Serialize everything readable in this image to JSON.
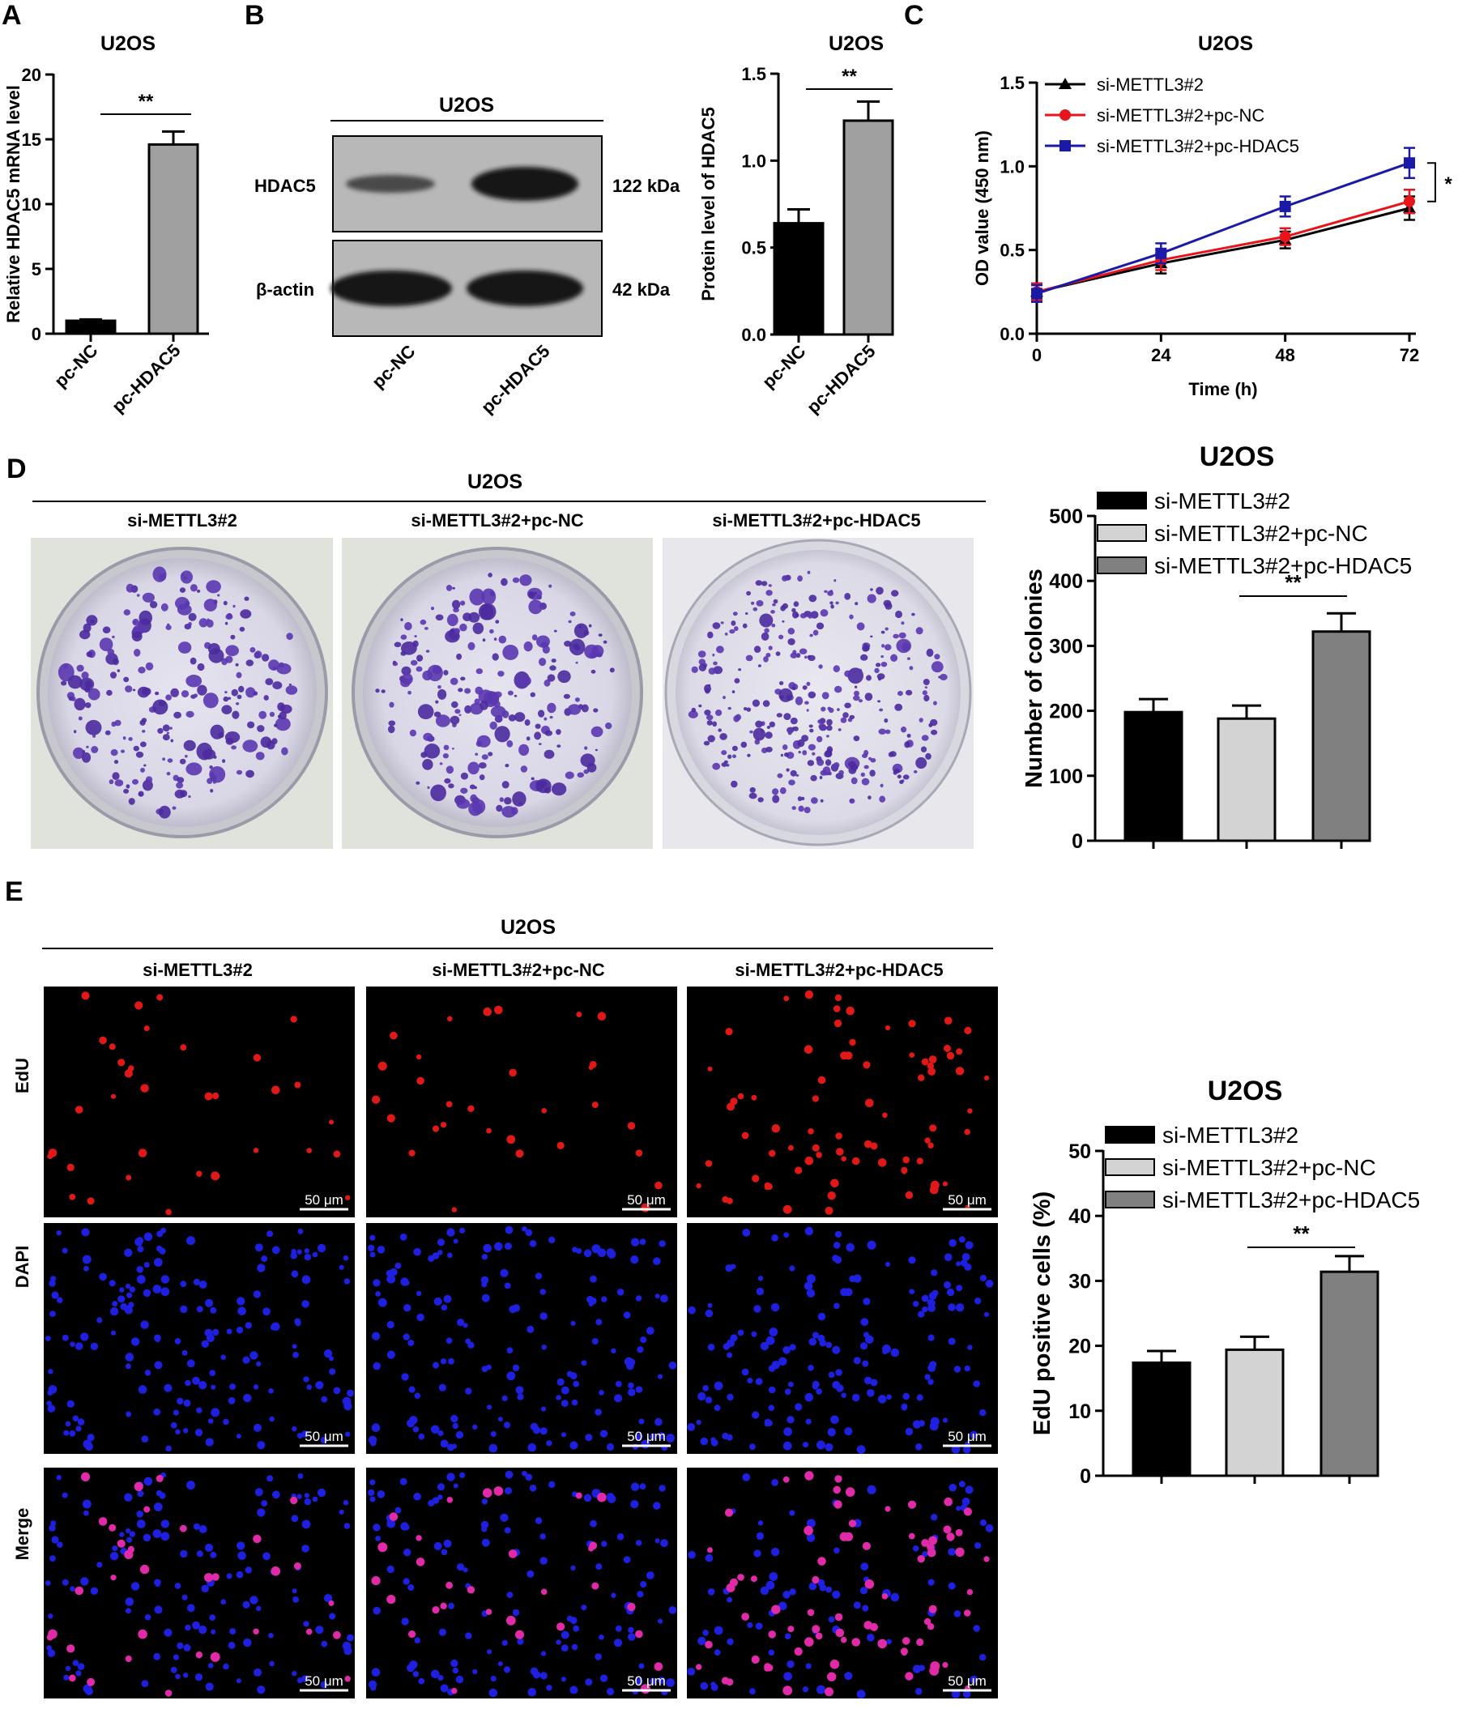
{
  "panels": {
    "A": {
      "letter": "A",
      "title": "U2OS",
      "sig": "**",
      "chart_data": {
        "type": "bar",
        "title": "U2OS",
        "ylabel": "Relative HDAC5 mRNA level",
        "ylim": [
          0,
          20
        ],
        "yticks": [
          "0",
          "5",
          "10",
          "15",
          "20"
        ],
        "categories": [
          "pc-NC",
          "pc-HDAC5"
        ],
        "values": [
          1.0,
          14.6
        ],
        "errors": [
          0.1,
          1.0
        ],
        "colors": [
          "#000000",
          "#a0a0a0"
        ]
      }
    },
    "B": {
      "letter": "B",
      "blot_title": "U2OS",
      "bands": [
        {
          "label": "HDAC5",
          "size": "122 kDa"
        },
        {
          "label": "β-actin",
          "size": "42 kDa"
        }
      ],
      "lanes": [
        "pc-NC",
        "pc-HDAC5"
      ],
      "sig": "**",
      "chart_data": {
        "type": "bar",
        "title": "U2OS",
        "ylabel": "Protein level of HDAC5",
        "ylim": [
          0,
          1.5
        ],
        "yticks": [
          "0.0",
          "0.5",
          "1.0",
          "1.5"
        ],
        "categories": [
          "pc-NC",
          "pc-HDAC5"
        ],
        "values": [
          0.64,
          1.23
        ],
        "errors": [
          0.08,
          0.11
        ],
        "colors": [
          "#000000",
          "#a0a0a0"
        ]
      }
    },
    "C": {
      "letter": "C",
      "sig": "*",
      "chart_data": {
        "type": "line",
        "title": "U2OS",
        "xlabel": "Time (h)",
        "ylabel": "OD value (450 nm)",
        "x": [
          0,
          24,
          48,
          72
        ],
        "xticks": [
          "0",
          "24",
          "48",
          "72"
        ],
        "ylim": [
          0,
          1.5
        ],
        "yticks": [
          "0.0",
          "0.5",
          "1.0",
          "1.5"
        ],
        "legend_position": "top-left",
        "series": [
          {
            "name": "si-METTL3#2",
            "values": [
              0.25,
              0.42,
              0.56,
              0.75
            ],
            "errors": [
              0.05,
              0.06,
              0.05,
              0.07
            ],
            "color": "#000000",
            "marker": "triangle"
          },
          {
            "name": "si-METTL3#2+pc-NC",
            "values": [
              0.25,
              0.44,
              0.58,
              0.79
            ],
            "errors": [
              0.05,
              0.06,
              0.05,
              0.07
            ],
            "color": "#e8141b",
            "marker": "circle"
          },
          {
            "name": "si-METTL3#2+pc-HDAC5",
            "values": [
              0.24,
              0.48,
              0.76,
              1.02
            ],
            "errors": [
              0.05,
              0.06,
              0.06,
              0.09
            ],
            "color": "#1a1aa6",
            "marker": "square"
          }
        ]
      }
    },
    "D": {
      "letter": "D",
      "header": "U2OS",
      "images": [
        "si-METTL3#2",
        "si-METTL3#2+pc-NC",
        "si-METTL3#2+pc-HDAC5"
      ],
      "sig": "**",
      "chart_data": {
        "type": "bar",
        "title": "U2OS",
        "ylabel": "Number of colonies",
        "ylim": [
          0,
          500
        ],
        "yticks": [
          "0",
          "100",
          "200",
          "300",
          "400",
          "500"
        ],
        "categories": [
          "si-METTL3#2",
          "si-METTL3#2+pc-NC",
          "si-METTL3#2+pc-HDAC5"
        ],
        "values": [
          198,
          188,
          322
        ],
        "errors": [
          20,
          20,
          28
        ],
        "colors": [
          "#000000",
          "#d3d3d3",
          "#808080"
        ],
        "legend": [
          "si-METTL3#2",
          "si-METTL3#2+pc-NC",
          "si-METTL3#2+pc-HDAC5"
        ],
        "legend_position": "top"
      }
    },
    "E": {
      "letter": "E",
      "header": "U2OS",
      "columns": [
        "si-METTL3#2",
        "si-METTL3#2+pc-NC",
        "si-METTL3#2+pc-HDAC5"
      ],
      "rows": [
        "EdU",
        "DAPI",
        "Merge"
      ],
      "scalebar": "50 μm",
      "sig": "**",
      "chart_data": {
        "type": "bar",
        "title": "U2OS",
        "ylabel": "EdU positive cells (%)",
        "ylim": [
          0,
          50
        ],
        "yticks": [
          "0",
          "10",
          "20",
          "30",
          "40",
          "50"
        ],
        "categories": [
          "si-METTL3#2",
          "si-METTL3#2+pc-NC",
          "si-METTL3#2+pc-HDAC5"
        ],
        "values": [
          17.4,
          19.4,
          31.4
        ],
        "errors": [
          1.8,
          2.0,
          2.4
        ],
        "colors": [
          "#000000",
          "#d3d3d3",
          "#808080"
        ],
        "legend": [
          "si-METTL3#2",
          "si-METTL3#2+pc-NC",
          "si-METTL3#2+pc-HDAC5"
        ],
        "legend_position": "top"
      }
    }
  }
}
